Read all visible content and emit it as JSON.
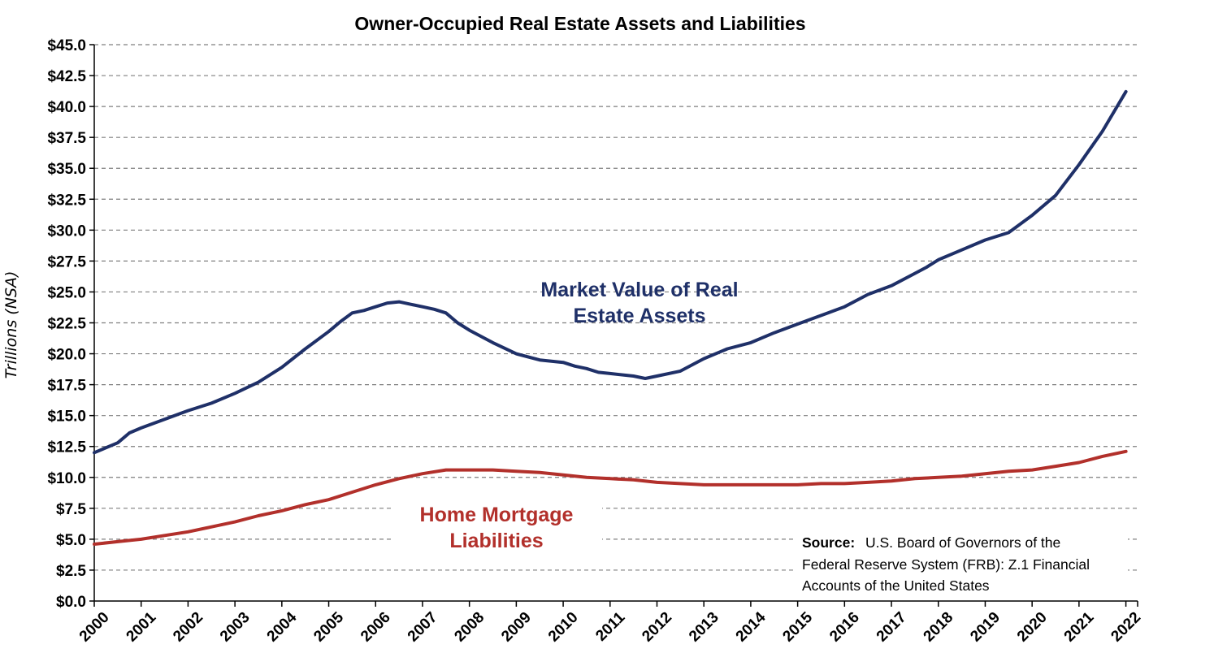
{
  "chart_data": {
    "type": "line",
    "title": "Owner-Occupied Real Estate Assets and Liabilities",
    "ylabel": "Trillions (NSA)",
    "xlabel": "",
    "xlim": [
      2000,
      2022.25
    ],
    "ylim": [
      0,
      45
    ],
    "y_tick_values": [
      0,
      2.5,
      5,
      7.5,
      10,
      12.5,
      15,
      17.5,
      20,
      22.5,
      25,
      27.5,
      30,
      32.5,
      35,
      37.5,
      40,
      42.5,
      45
    ],
    "y_tick_labels": [
      "$0.0",
      "$2.5",
      "$5.0",
      "$7.5",
      "$10.0",
      "$12.5",
      "$15.0",
      "$17.5",
      "$20.0",
      "$22.5",
      "$25.0",
      "$27.5",
      "$30.0",
      "$32.5",
      "$35.0",
      "$37.5",
      "$40.0",
      "$42.5",
      "$45.0"
    ],
    "x_tick_labels": [
      "2000",
      "2001",
      "2002",
      "2003",
      "2004",
      "2005",
      "2006",
      "2007",
      "2008",
      "2009",
      "2010",
      "2011",
      "2012",
      "2013",
      "2014",
      "2015",
      "2016",
      "2017",
      "2018",
      "2019",
      "2020",
      "2021",
      "2022"
    ],
    "grid": "horizontal dashed",
    "series": [
      {
        "name": "Market Value of Real Estate Assets",
        "color": "#1f3068",
        "points": [
          [
            2000.0,
            12.0
          ],
          [
            2000.5,
            12.8
          ],
          [
            2000.75,
            13.6
          ],
          [
            2001.0,
            14.0
          ],
          [
            2001.5,
            14.7
          ],
          [
            2002.0,
            15.4
          ],
          [
            2002.5,
            16.0
          ],
          [
            2003.0,
            16.8
          ],
          [
            2003.5,
            17.7
          ],
          [
            2004.0,
            18.9
          ],
          [
            2004.5,
            20.4
          ],
          [
            2005.0,
            21.8
          ],
          [
            2005.25,
            22.6
          ],
          [
            2005.5,
            23.3
          ],
          [
            2005.75,
            23.5
          ],
          [
            2006.0,
            23.8
          ],
          [
            2006.25,
            24.1
          ],
          [
            2006.5,
            24.2
          ],
          [
            2006.75,
            24.0
          ],
          [
            2007.0,
            23.8
          ],
          [
            2007.25,
            23.6
          ],
          [
            2007.5,
            23.3
          ],
          [
            2007.75,
            22.5
          ],
          [
            2008.0,
            21.9
          ],
          [
            2008.5,
            20.9
          ],
          [
            2009.0,
            20.0
          ],
          [
            2009.5,
            19.5
          ],
          [
            2010.0,
            19.3
          ],
          [
            2010.25,
            19.0
          ],
          [
            2010.5,
            18.8
          ],
          [
            2010.75,
            18.5
          ],
          [
            2011.0,
            18.4
          ],
          [
            2011.5,
            18.2
          ],
          [
            2011.75,
            18.0
          ],
          [
            2012.0,
            18.2
          ],
          [
            2012.5,
            18.6
          ],
          [
            2013.0,
            19.6
          ],
          [
            2013.5,
            20.4
          ],
          [
            2014.0,
            20.9
          ],
          [
            2014.5,
            21.7
          ],
          [
            2015.0,
            22.4
          ],
          [
            2015.5,
            23.1
          ],
          [
            2016.0,
            23.8
          ],
          [
            2016.5,
            24.8
          ],
          [
            2017.0,
            25.5
          ],
          [
            2017.5,
            26.5
          ],
          [
            2017.75,
            27.0
          ],
          [
            2018.0,
            27.6
          ],
          [
            2018.5,
            28.4
          ],
          [
            2019.0,
            29.2
          ],
          [
            2019.5,
            29.8
          ],
          [
            2020.0,
            31.2
          ],
          [
            2020.5,
            32.8
          ],
          [
            2021.0,
            35.3
          ],
          [
            2021.5,
            38.0
          ],
          [
            2022.0,
            41.2
          ]
        ]
      },
      {
        "name": "Home Mortgage Liabilities",
        "color": "#b2302b",
        "points": [
          [
            2000.0,
            4.6
          ],
          [
            2000.5,
            4.8
          ],
          [
            2001.0,
            5.0
          ],
          [
            2001.5,
            5.3
          ],
          [
            2002.0,
            5.6
          ],
          [
            2002.5,
            6.0
          ],
          [
            2003.0,
            6.4
          ],
          [
            2003.5,
            6.9
          ],
          [
            2004.0,
            7.3
          ],
          [
            2004.5,
            7.8
          ],
          [
            2005.0,
            8.2
          ],
          [
            2005.5,
            8.8
          ],
          [
            2006.0,
            9.4
          ],
          [
            2006.5,
            9.9
          ],
          [
            2007.0,
            10.3
          ],
          [
            2007.5,
            10.6
          ],
          [
            2008.0,
            10.6
          ],
          [
            2008.5,
            10.6
          ],
          [
            2009.0,
            10.5
          ],
          [
            2009.5,
            10.4
          ],
          [
            2010.0,
            10.2
          ],
          [
            2010.5,
            10.0
          ],
          [
            2011.0,
            9.9
          ],
          [
            2011.5,
            9.8
          ],
          [
            2012.0,
            9.6
          ],
          [
            2012.5,
            9.5
          ],
          [
            2013.0,
            9.4
          ],
          [
            2013.5,
            9.4
          ],
          [
            2014.0,
            9.4
          ],
          [
            2014.5,
            9.4
          ],
          [
            2015.0,
            9.4
          ],
          [
            2015.5,
            9.5
          ],
          [
            2016.0,
            9.5
          ],
          [
            2016.5,
            9.6
          ],
          [
            2017.0,
            9.7
          ],
          [
            2017.5,
            9.9
          ],
          [
            2018.0,
            10.0
          ],
          [
            2018.5,
            10.1
          ],
          [
            2019.0,
            10.3
          ],
          [
            2019.5,
            10.5
          ],
          [
            2020.0,
            10.6
          ],
          [
            2020.5,
            10.9
          ],
          [
            2021.0,
            11.2
          ],
          [
            2021.5,
            11.7
          ],
          [
            2022.0,
            12.1
          ]
        ]
      }
    ],
    "annotations": {
      "assets_label": [
        "Market Value of Real",
        "Estate Assets"
      ],
      "mortgage_label": [
        "Home Mortgage",
        "Liabilities"
      ]
    },
    "source": {
      "label": "Source:",
      "lines": [
        "U.S. Board of Governors of the",
        "Federal Reserve System (FRB): Z.1 Financial",
        "Accounts of the United States"
      ]
    }
  }
}
